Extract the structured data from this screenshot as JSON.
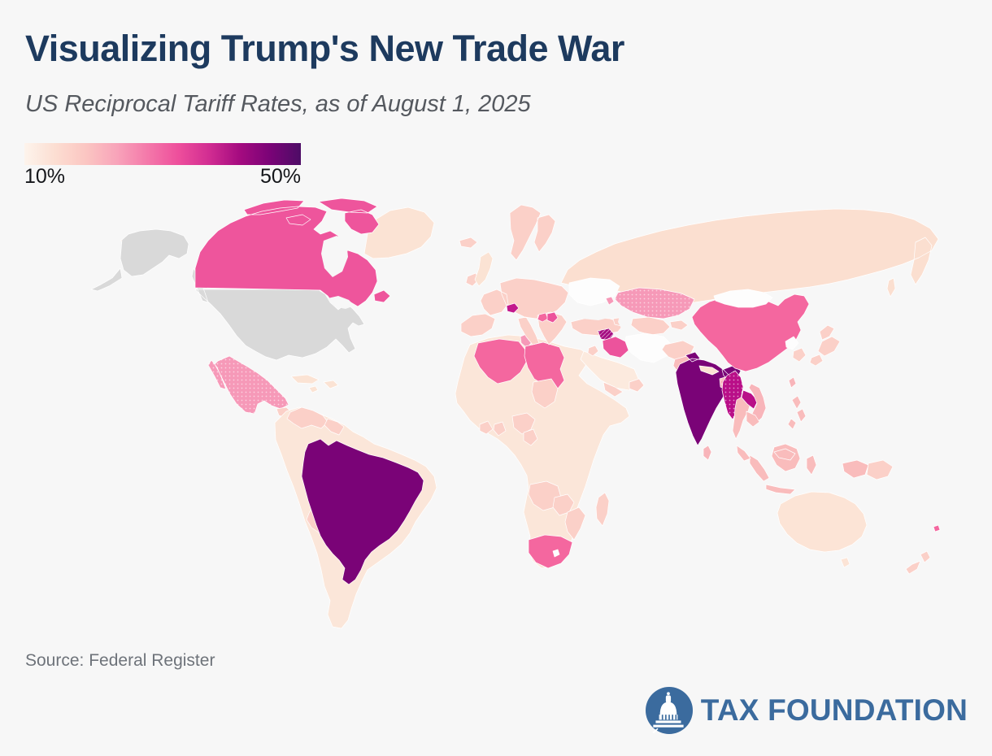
{
  "page": {
    "background": "#f7f7f7"
  },
  "header": {
    "title": "Visualizing Trump's New Trade War",
    "subtitle": "US Reciprocal Tariff Rates, as of August 1, 2025"
  },
  "legend": {
    "min_label": "10%",
    "max_label": "50%",
    "gradient_stops": [
      "#fdf4ec",
      "#fcded2",
      "#fbc6c2",
      "#f8a4ba",
      "#f479aa",
      "#ee4f9c",
      "#d22d92",
      "#a50b80",
      "#7a0377",
      "#4d0c66"
    ]
  },
  "footer": {
    "source": "Source: Federal Register",
    "logo_text": "TAX FOUNDATION",
    "logo_color": "#3b6b9e"
  },
  "chart_data": {
    "type": "heatmap",
    "subtype": "choropleth-world-map",
    "title": "US Reciprocal Tariff Rates, as of August 1, 2025",
    "unit": "percent tariff rate",
    "scale": {
      "min": 10,
      "max": 50,
      "min_label": "10%",
      "max_label": "50%"
    },
    "no_data_color": "#d9d9d9",
    "not_listed_color": "#fdfdfd",
    "border_color": "#ffffff",
    "regions": [
      {
        "id": "russia",
        "name": "Russia",
        "rate": 10,
        "color": "#fbdfd0"
      },
      {
        "id": "greenland",
        "name": "Greenland",
        "rate": 10,
        "color": "#fbe3d4"
      },
      {
        "id": "united-states",
        "name": "United States",
        "rate": null,
        "color": "#d9d9d9",
        "note": "no data (home country)"
      },
      {
        "id": "canada",
        "name": "Canada",
        "rate": 35,
        "color": "#ee559c"
      },
      {
        "id": "mexico",
        "name": "Mexico",
        "rate": 25,
        "color": "#f699b8",
        "pattern": "dots"
      },
      {
        "id": "central-america",
        "name": "Central America",
        "rate": 15,
        "color": "#fbd0c8"
      },
      {
        "id": "nicaragua",
        "name": "Nicaragua",
        "rate": 18,
        "color": "#f9bfbe"
      },
      {
        "id": "caribbean",
        "name": "Caribbean",
        "rate": 10,
        "color": "#fbe3d4"
      },
      {
        "id": "south-america-other",
        "name": "South America (other)",
        "rate": 10,
        "color": "#fbe6d9"
      },
      {
        "id": "venezuela",
        "name": "Venezuela",
        "rate": 15,
        "color": "#fbd0c8"
      },
      {
        "id": "guyana",
        "name": "Guyana & Suriname",
        "rate": 15,
        "color": "#fbd0c8"
      },
      {
        "id": "bolivia",
        "name": "Bolivia",
        "rate": 15,
        "color": "#fbd0c8"
      },
      {
        "id": "brazil",
        "name": "Brazil",
        "rate": 50,
        "color": "#7a0377"
      },
      {
        "id": "africa-other",
        "name": "Africa (other)",
        "rate": 10,
        "color": "#fbe6d9"
      },
      {
        "id": "algeria",
        "name": "Algeria",
        "rate": 30,
        "color": "#f4679f"
      },
      {
        "id": "tunisia",
        "name": "Tunisia",
        "rate": 25,
        "color": "#f699b8"
      },
      {
        "id": "libya",
        "name": "Libya",
        "rate": 30,
        "color": "#f4679f"
      },
      {
        "id": "chad",
        "name": "Chad",
        "rate": 15,
        "color": "#fbd0c8"
      },
      {
        "id": "nigeria",
        "name": "Nigeria",
        "rate": 15,
        "color": "#fbd0c8"
      },
      {
        "id": "ghana",
        "name": "Ghana",
        "rate": 15,
        "color": "#fbd0c8"
      },
      {
        "id": "cote-divoire",
        "name": "Côte d'Ivoire",
        "rate": 15,
        "color": "#fbd0c8"
      },
      {
        "id": "cameroon",
        "name": "Cameroon",
        "rate": 15,
        "color": "#fbd0c8"
      },
      {
        "id": "angola",
        "name": "Angola",
        "rate": 15,
        "color": "#fbd0c8"
      },
      {
        "id": "zambia",
        "name": "Zambia",
        "rate": 15,
        "color": "#fbd0c8"
      },
      {
        "id": "mozambique",
        "name": "Mozambique",
        "rate": 15,
        "color": "#fbd0c8"
      },
      {
        "id": "south-africa",
        "name": "South Africa",
        "rate": 30,
        "color": "#f4679f"
      },
      {
        "id": "lesotho",
        "name": "Lesotho",
        "rate": null,
        "color": "#fdfdfd"
      },
      {
        "id": "madagascar",
        "name": "Madagascar",
        "rate": 15,
        "color": "#fbd0c8"
      },
      {
        "id": "european-union",
        "name": "European Union",
        "rate": 15,
        "color": "#fbd0c8"
      },
      {
        "id": "united-kingdom",
        "name": "United Kingdom",
        "rate": 10,
        "color": "#fbe3d4"
      },
      {
        "id": "iceland",
        "name": "Iceland",
        "rate": 15,
        "color": "#fbd0c8"
      },
      {
        "id": "switzerland",
        "name": "Switzerland",
        "rate": 39,
        "color": "#c2188d"
      },
      {
        "id": "bosnia-herzegovina",
        "name": "Bosnia and Herzegovina",
        "rate": 30,
        "color": "#f4679f"
      },
      {
        "id": "serbia",
        "name": "Serbia",
        "rate": 35,
        "color": "#ec539c"
      },
      {
        "id": "ukraine",
        "name": "Ukraine",
        "rate": null,
        "color": "#fdfdfd"
      },
      {
        "id": "moldova",
        "name": "Moldova",
        "rate": 25,
        "color": "#f699b8"
      },
      {
        "id": "turkey",
        "name": "Türkiye",
        "rate": 15,
        "color": "#fbd0c8"
      },
      {
        "id": "kazakhstan",
        "name": "Kazakhstan",
        "rate": 25,
        "color": "#f699b8",
        "pattern": "dots"
      },
      {
        "id": "central-asia",
        "name": "Central Asia",
        "rate": 15,
        "color": "#fbd0c8"
      },
      {
        "id": "caucasus",
        "name": "Caucasus",
        "rate": 15,
        "color": "#fbd0c8"
      },
      {
        "id": "iran",
        "name": "Iran",
        "rate": null,
        "color": "#fdfdfd"
      },
      {
        "id": "syria",
        "name": "Syria",
        "rate": 41,
        "color": "#a40b80",
        "pattern": "hatch"
      },
      {
        "id": "iraq",
        "name": "Iraq",
        "rate": 35,
        "color": "#ec539c"
      },
      {
        "id": "saudi-arabia",
        "name": "Saudi Arabia",
        "rate": 10,
        "color": "#fceade"
      },
      {
        "id": "israel-jordan",
        "name": "Israel & Jordan",
        "rate": 15,
        "color": "#fbd0c8"
      },
      {
        "id": "gulf-states",
        "name": "Gulf states",
        "rate": 15,
        "color": "#fbd0c8"
      },
      {
        "id": "afghanistan",
        "name": "Afghanistan",
        "rate": 15,
        "color": "#fbd0c8"
      },
      {
        "id": "pakistan",
        "name": "Pakistan",
        "rate": 19,
        "color": "#f9bcbc"
      },
      {
        "id": "india",
        "name": "India",
        "rate": 50,
        "color": "#7a0377"
      },
      {
        "id": "nepal",
        "name": "Nepal",
        "rate": 10,
        "color": "#fbe3d4"
      },
      {
        "id": "bangladesh",
        "name": "Bangladesh",
        "rate": 20,
        "color": "#f8b5ba",
        "pattern": "dots"
      },
      {
        "id": "sri-lanka",
        "name": "Sri Lanka",
        "rate": 20,
        "color": "#f8b5ba"
      },
      {
        "id": "china",
        "name": "China",
        "rate": 30,
        "color": "#f4679f"
      },
      {
        "id": "mongolia",
        "name": "Mongolia",
        "rate": null,
        "color": "#fdfdfd"
      },
      {
        "id": "north-korea",
        "name": "North Korea",
        "rate": null,
        "color": "#fdfdfd"
      },
      {
        "id": "south-korea",
        "name": "South Korea",
        "rate": 15,
        "color": "#fbd0c8"
      },
      {
        "id": "japan",
        "name": "Japan",
        "rate": 15,
        "color": "#fbd0c8"
      },
      {
        "id": "taiwan",
        "name": "Taiwan",
        "rate": 20,
        "color": "#f8b5ba"
      },
      {
        "id": "myanmar",
        "name": "Myanmar (Burma)",
        "rate": 40,
        "color": "#b90f88",
        "pattern": "dots"
      },
      {
        "id": "thailand",
        "name": "Thailand",
        "rate": 19,
        "color": "#f9bcbc"
      },
      {
        "id": "laos",
        "name": "Laos",
        "rate": 40,
        "color": "#b90f88"
      },
      {
        "id": "vietnam",
        "name": "Vietnam",
        "rate": 20,
        "color": "#f8b5ba"
      },
      {
        "id": "cambodia",
        "name": "Cambodia",
        "rate": 19,
        "color": "#f9bcbc"
      },
      {
        "id": "philippines",
        "name": "Philippines",
        "rate": 19,
        "color": "#f9bcbc"
      },
      {
        "id": "indonesia",
        "name": "Indonesia",
        "rate": 19,
        "color": "#f9bcbc"
      },
      {
        "id": "malaysia",
        "name": "Malaysia",
        "rate": 19,
        "color": "#f9bcbc"
      },
      {
        "id": "papua-new-guinea",
        "name": "Papua New Guinea",
        "rate": 15,
        "color": "#fbd0c8"
      },
      {
        "id": "australia",
        "name": "Australia",
        "rate": 10,
        "color": "#fce4d6"
      },
      {
        "id": "new-zealand",
        "name": "New Zealand",
        "rate": 15,
        "color": "#fbd0c8"
      },
      {
        "id": "fiji",
        "name": "Fiji",
        "rate": 30,
        "color": "#f4679f"
      }
    ]
  }
}
